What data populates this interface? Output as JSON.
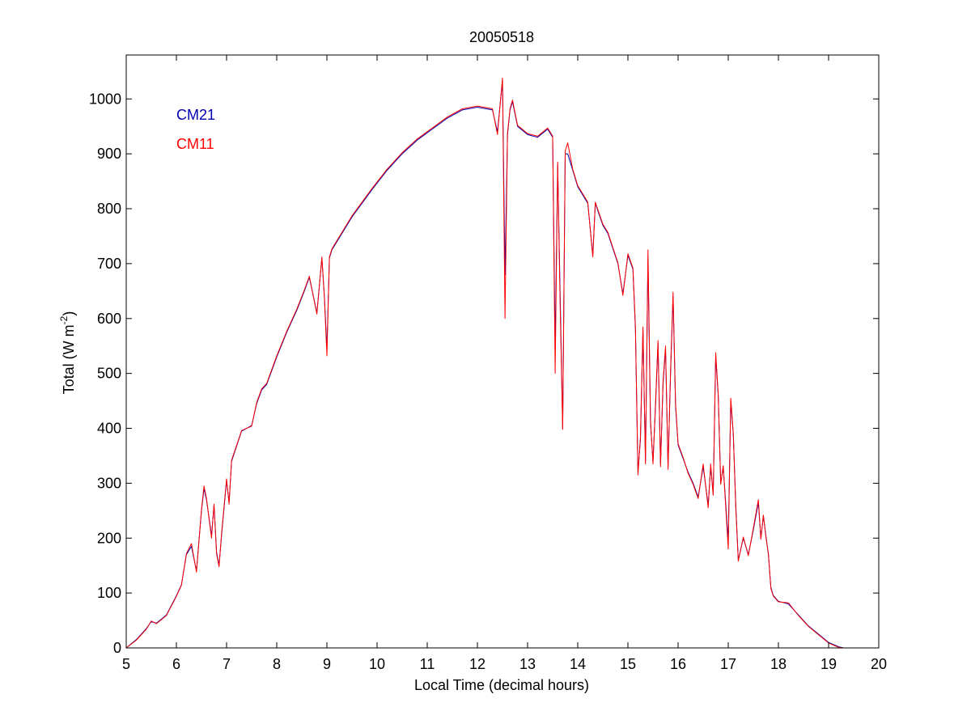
{
  "chart_data": {
    "type": "line",
    "title": "20050518",
    "xlabel": "Local Time (decimal hours)",
    "ylabel_main": "Total (W m",
    "ylabel_sup": "-2",
    "ylabel_close": ")",
    "xlim": [
      5,
      20
    ],
    "ylim": [
      0,
      1080
    ],
    "x_ticks": [
      "5",
      "6",
      "7",
      "8",
      "9",
      "10",
      "11",
      "12",
      "13",
      "14",
      "15",
      "16",
      "17",
      "18",
      "19",
      "20"
    ],
    "y_ticks": [
      "0",
      "100",
      "200",
      "300",
      "400",
      "500",
      "600",
      "700",
      "800",
      "900",
      "1000"
    ],
    "grid": false,
    "legend_position": "top-left",
    "series": [
      {
        "name": "CM21",
        "color": "#0000b0",
        "points": [
          [
            5.0,
            0
          ],
          [
            5.2,
            15
          ],
          [
            5.4,
            35
          ],
          [
            5.5,
            48
          ],
          [
            5.6,
            45
          ],
          [
            5.8,
            60
          ],
          [
            6.0,
            95
          ],
          [
            6.1,
            115
          ],
          [
            6.2,
            170
          ],
          [
            6.3,
            185
          ],
          [
            6.4,
            140
          ],
          [
            6.5,
            250
          ],
          [
            6.55,
            290
          ],
          [
            6.6,
            270
          ],
          [
            6.7,
            205
          ],
          [
            6.75,
            260
          ],
          [
            6.8,
            175
          ],
          [
            6.85,
            150
          ],
          [
            6.9,
            205
          ],
          [
            7.0,
            305
          ],
          [
            7.05,
            265
          ],
          [
            7.1,
            340
          ],
          [
            7.3,
            395
          ],
          [
            7.5,
            405
          ],
          [
            7.6,
            445
          ],
          [
            7.7,
            470
          ],
          [
            7.8,
            480
          ],
          [
            8.0,
            530
          ],
          [
            8.2,
            575
          ],
          [
            8.4,
            615
          ],
          [
            8.55,
            650
          ],
          [
            8.65,
            675
          ],
          [
            8.8,
            610
          ],
          [
            8.9,
            710
          ],
          [
            8.95,
            640
          ],
          [
            9.0,
            545
          ],
          [
            9.05,
            710
          ],
          [
            9.1,
            725
          ],
          [
            9.3,
            755
          ],
          [
            9.5,
            785
          ],
          [
            9.7,
            810
          ],
          [
            9.9,
            835
          ],
          [
            10.2,
            870
          ],
          [
            10.5,
            900
          ],
          [
            10.8,
            925
          ],
          [
            11.1,
            945
          ],
          [
            11.4,
            965
          ],
          [
            11.7,
            980
          ],
          [
            12.0,
            985
          ],
          [
            12.3,
            980
          ],
          [
            12.4,
            940
          ],
          [
            12.5,
            1035
          ],
          [
            12.55,
            680
          ],
          [
            12.6,
            935
          ],
          [
            12.65,
            980
          ],
          [
            12.7,
            995
          ],
          [
            12.8,
            950
          ],
          [
            13.0,
            935
          ],
          [
            13.2,
            930
          ],
          [
            13.4,
            945
          ],
          [
            13.5,
            930
          ],
          [
            13.55,
            550
          ],
          [
            13.6,
            880
          ],
          [
            13.65,
            640
          ],
          [
            13.7,
            400
          ],
          [
            13.75,
            900
          ],
          [
            13.8,
            900
          ],
          [
            13.9,
            870
          ],
          [
            14.0,
            840
          ],
          [
            14.2,
            810
          ],
          [
            14.3,
            715
          ],
          [
            14.35,
            810
          ],
          [
            14.5,
            770
          ],
          [
            14.6,
            755
          ],
          [
            14.8,
            700
          ],
          [
            14.9,
            645
          ],
          [
            15.0,
            715
          ],
          [
            15.1,
            690
          ],
          [
            15.15,
            580
          ],
          [
            15.2,
            320
          ],
          [
            15.25,
            380
          ],
          [
            15.3,
            580
          ],
          [
            15.35,
            340
          ],
          [
            15.4,
            710
          ],
          [
            15.45,
            410
          ],
          [
            15.5,
            340
          ],
          [
            15.55,
            440
          ],
          [
            15.6,
            555
          ],
          [
            15.65,
            335
          ],
          [
            15.7,
            480
          ],
          [
            15.75,
            545
          ],
          [
            15.8,
            330
          ],
          [
            15.85,
            500
          ],
          [
            15.9,
            640
          ],
          [
            15.95,
            440
          ],
          [
            16.0,
            370
          ],
          [
            16.1,
            345
          ],
          [
            16.2,
            320
          ],
          [
            16.3,
            300
          ],
          [
            16.4,
            275
          ],
          [
            16.5,
            330
          ],
          [
            16.6,
            260
          ],
          [
            16.65,
            330
          ],
          [
            16.7,
            280
          ],
          [
            16.75,
            530
          ],
          [
            16.8,
            460
          ],
          [
            16.85,
            300
          ],
          [
            16.9,
            330
          ],
          [
            17.0,
            195
          ],
          [
            17.05,
            450
          ],
          [
            17.1,
            390
          ],
          [
            17.15,
            260
          ],
          [
            17.2,
            160
          ],
          [
            17.3,
            200
          ],
          [
            17.4,
            170
          ],
          [
            17.5,
            215
          ],
          [
            17.6,
            265
          ],
          [
            17.65,
            200
          ],
          [
            17.7,
            240
          ],
          [
            17.75,
            205
          ],
          [
            17.8,
            170
          ],
          [
            17.85,
            110
          ],
          [
            17.9,
            95
          ],
          [
            18.0,
            85
          ],
          [
            18.2,
            80
          ],
          [
            18.4,
            60
          ],
          [
            18.6,
            40
          ],
          [
            18.8,
            25
          ],
          [
            19.0,
            10
          ],
          [
            19.2,
            2
          ],
          [
            19.3,
            0
          ]
        ]
      },
      {
        "name": "CM11",
        "color": "#ff0000",
        "points": [
          [
            5.0,
            0
          ],
          [
            5.2,
            14
          ],
          [
            5.4,
            34
          ],
          [
            5.5,
            49
          ],
          [
            5.6,
            44
          ],
          [
            5.8,
            59
          ],
          [
            6.0,
            94
          ],
          [
            6.1,
            114
          ],
          [
            6.2,
            172
          ],
          [
            6.3,
            190
          ],
          [
            6.4,
            138
          ],
          [
            6.5,
            252
          ],
          [
            6.55,
            295
          ],
          [
            6.6,
            272
          ],
          [
            6.7,
            200
          ],
          [
            6.75,
            262
          ],
          [
            6.8,
            172
          ],
          [
            6.85,
            148
          ],
          [
            6.9,
            208
          ],
          [
            7.0,
            308
          ],
          [
            7.05,
            262
          ],
          [
            7.1,
            342
          ],
          [
            7.3,
            396
          ],
          [
            7.5,
            404
          ],
          [
            7.6,
            447
          ],
          [
            7.7,
            472
          ],
          [
            7.8,
            482
          ],
          [
            8.0,
            532
          ],
          [
            8.2,
            577
          ],
          [
            8.4,
            617
          ],
          [
            8.55,
            652
          ],
          [
            8.65,
            677
          ],
          [
            8.8,
            608
          ],
          [
            8.9,
            712
          ],
          [
            8.95,
            638
          ],
          [
            9.0,
            532
          ],
          [
            9.05,
            712
          ],
          [
            9.1,
            727
          ],
          [
            9.3,
            757
          ],
          [
            9.5,
            787
          ],
          [
            9.7,
            812
          ],
          [
            9.9,
            837
          ],
          [
            10.2,
            872
          ],
          [
            10.5,
            902
          ],
          [
            10.8,
            927
          ],
          [
            11.1,
            947
          ],
          [
            11.4,
            967
          ],
          [
            11.7,
            982
          ],
          [
            12.0,
            987
          ],
          [
            12.3,
            982
          ],
          [
            12.4,
            935
          ],
          [
            12.5,
            1038
          ],
          [
            12.55,
            600
          ],
          [
            12.6,
            938
          ],
          [
            12.65,
            982
          ],
          [
            12.7,
            998
          ],
          [
            12.8,
            952
          ],
          [
            13.0,
            937
          ],
          [
            13.2,
            932
          ],
          [
            13.4,
            947
          ],
          [
            13.5,
            932
          ],
          [
            13.55,
            500
          ],
          [
            13.6,
            885
          ],
          [
            13.65,
            620
          ],
          [
            13.7,
            398
          ],
          [
            13.75,
            905
          ],
          [
            13.8,
            920
          ],
          [
            13.9,
            872
          ],
          [
            14.0,
            842
          ],
          [
            14.2,
            812
          ],
          [
            14.3,
            712
          ],
          [
            14.35,
            812
          ],
          [
            14.5,
            772
          ],
          [
            14.6,
            757
          ],
          [
            14.8,
            702
          ],
          [
            14.9,
            642
          ],
          [
            15.0,
            718
          ],
          [
            15.1,
            692
          ],
          [
            15.15,
            585
          ],
          [
            15.2,
            315
          ],
          [
            15.25,
            385
          ],
          [
            15.3,
            585
          ],
          [
            15.35,
            335
          ],
          [
            15.4,
            725
          ],
          [
            15.45,
            415
          ],
          [
            15.5,
            335
          ],
          [
            15.55,
            445
          ],
          [
            15.6,
            560
          ],
          [
            15.65,
            330
          ],
          [
            15.7,
            485
          ],
          [
            15.75,
            550
          ],
          [
            15.8,
            325
          ],
          [
            15.85,
            505
          ],
          [
            15.9,
            648
          ],
          [
            15.95,
            445
          ],
          [
            16.0,
            372
          ],
          [
            16.1,
            347
          ],
          [
            16.2,
            318
          ],
          [
            16.3,
            298
          ],
          [
            16.4,
            272
          ],
          [
            16.5,
            335
          ],
          [
            16.6,
            255
          ],
          [
            16.65,
            335
          ],
          [
            16.7,
            278
          ],
          [
            16.75,
            538
          ],
          [
            16.8,
            462
          ],
          [
            16.85,
            298
          ],
          [
            16.9,
            332
          ],
          [
            17.0,
            180
          ],
          [
            17.05,
            455
          ],
          [
            17.1,
            392
          ],
          [
            17.15,
            255
          ],
          [
            17.2,
            158
          ],
          [
            17.3,
            202
          ],
          [
            17.4,
            168
          ],
          [
            17.5,
            218
          ],
          [
            17.6,
            270
          ],
          [
            17.65,
            198
          ],
          [
            17.7,
            242
          ],
          [
            17.75,
            202
          ],
          [
            17.8,
            172
          ],
          [
            17.85,
            108
          ],
          [
            17.9,
            94
          ],
          [
            18.0,
            84
          ],
          [
            18.2,
            82
          ],
          [
            18.4,
            59
          ],
          [
            18.6,
            39
          ],
          [
            18.8,
            24
          ],
          [
            19.0,
            9
          ],
          [
            19.2,
            1
          ],
          [
            19.3,
            0
          ]
        ]
      }
    ]
  }
}
